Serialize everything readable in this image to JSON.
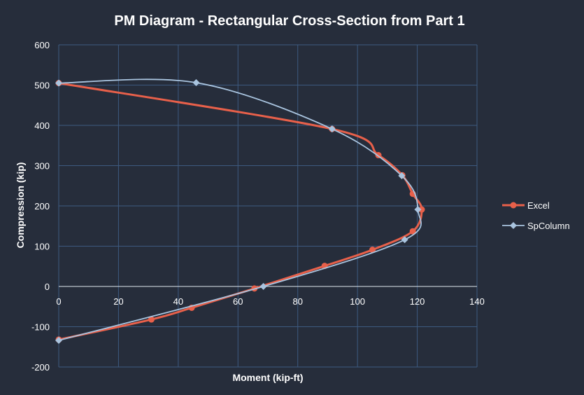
{
  "chart_data": {
    "type": "scatter",
    "title": "PM Diagram - Rectangular Cross-Section from Part 1",
    "xlabel": "Moment (kip-ft)",
    "ylabel": "Compression (kip)",
    "xlim": [
      0,
      140
    ],
    "ylim": [
      -200,
      600
    ],
    "xticks": [
      0,
      20,
      40,
      60,
      80,
      100,
      120,
      140
    ],
    "yticks": [
      -200,
      -100,
      0,
      100,
      200,
      300,
      400,
      500,
      600
    ],
    "grid": true,
    "legend_position": "right",
    "series": [
      {
        "name": "Excel",
        "color": "#e8604a",
        "marker": "circle",
        "points": [
          [
            0,
            505
          ],
          [
            91.5,
            391
          ],
          [
            107,
            326
          ],
          [
            115,
            276
          ],
          [
            118.5,
            230
          ],
          [
            121.5,
            191
          ],
          [
            118.5,
            137
          ],
          [
            105,
            91
          ],
          [
            89,
            51
          ],
          [
            65.5,
            -5
          ],
          [
            44.5,
            -53
          ],
          [
            31,
            -82
          ],
          [
            0,
            -132
          ]
        ]
      },
      {
        "name": "SpColumn",
        "color": "#a9c4df",
        "marker": "diamond",
        "points": [
          [
            0,
            505
          ],
          [
            46,
            506
          ],
          [
            91.5,
            391
          ],
          [
            114.8,
            275
          ],
          [
            120.2,
            191
          ],
          [
            115.8,
            116
          ],
          [
            68.5,
            0
          ],
          [
            0,
            -134
          ]
        ]
      }
    ]
  }
}
